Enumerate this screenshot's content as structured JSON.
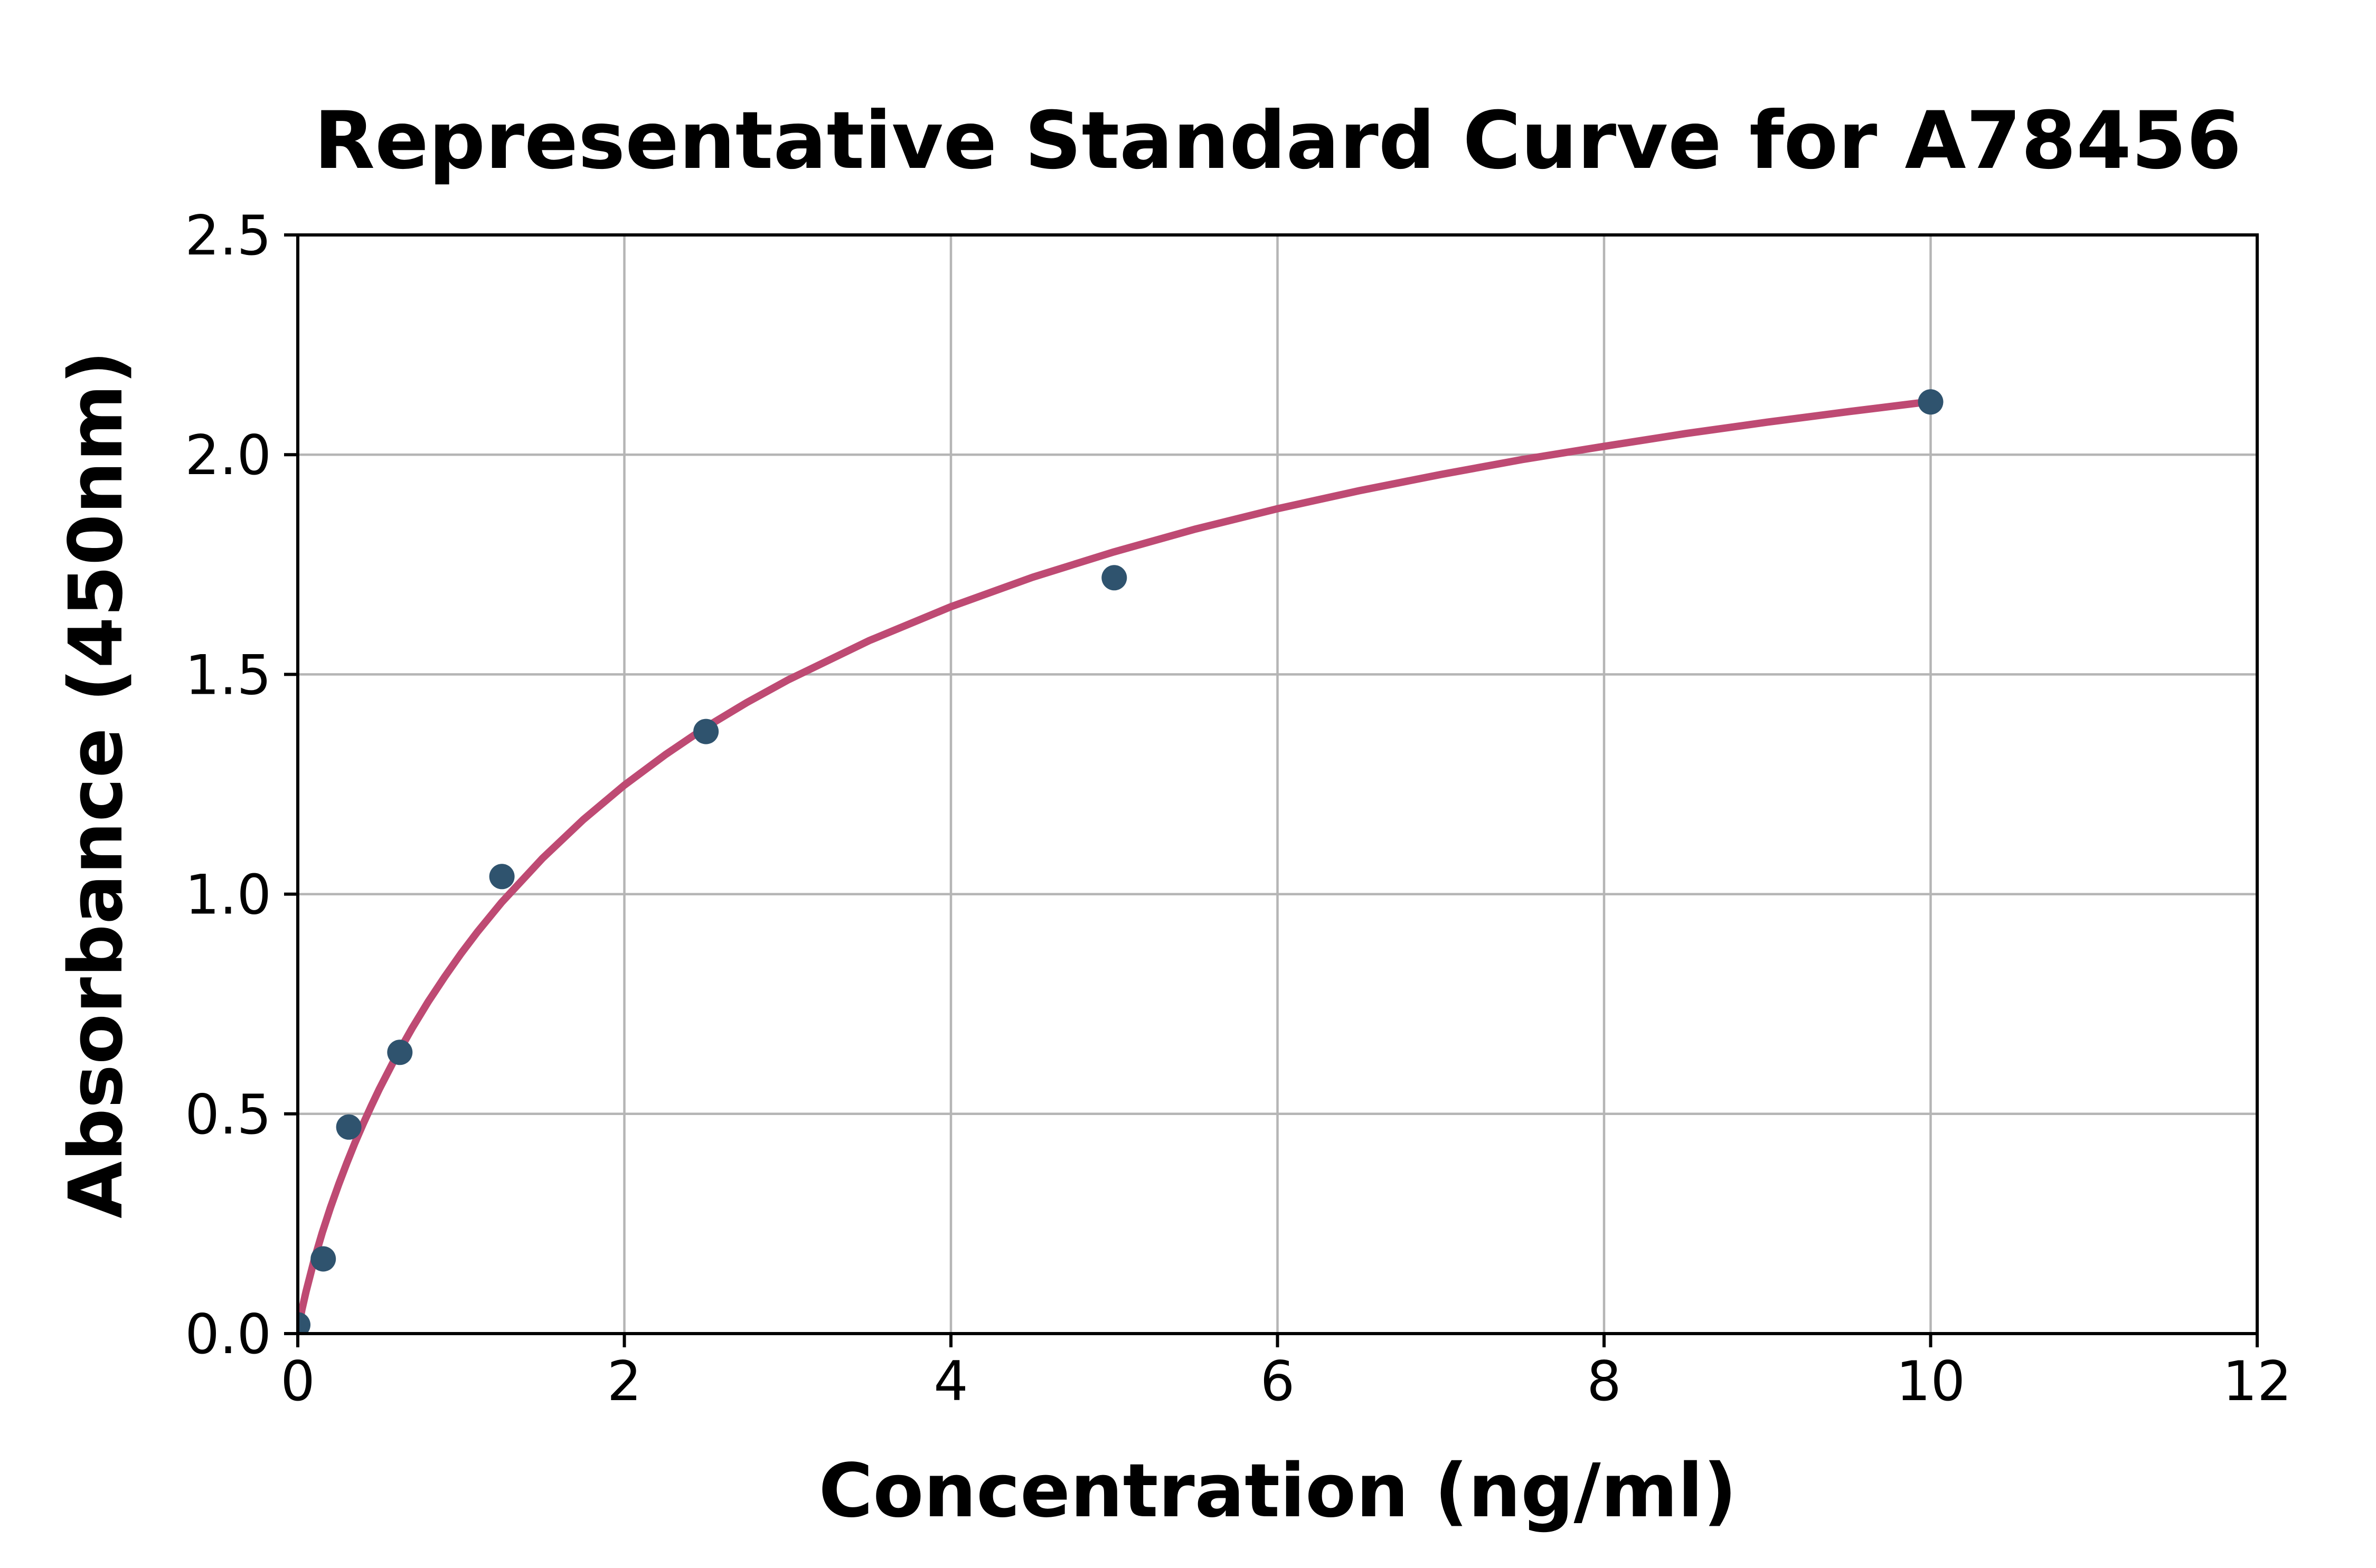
{
  "page": {
    "background": "#ffffff"
  },
  "chart_data": {
    "type": "scatter",
    "title": "Representative Standard Curve for A78456",
    "xlabel": "Concentration (ng/ml)",
    "ylabel": "Absorbance (450nm)",
    "xlim": [
      0,
      12
    ],
    "ylim": [
      0,
      2.5
    ],
    "grid": true,
    "legend_position": "none",
    "x_ticks": [
      {
        "value": 0,
        "label": "0"
      },
      {
        "value": 2,
        "label": "2"
      },
      {
        "value": 4,
        "label": "4"
      },
      {
        "value": 6,
        "label": "6"
      },
      {
        "value": 8,
        "label": "8"
      },
      {
        "value": 10,
        "label": "10"
      },
      {
        "value": 12,
        "label": "12"
      }
    ],
    "y_ticks": [
      {
        "value": 0.0,
        "label": "0.0"
      },
      {
        "value": 0.5,
        "label": "0.5"
      },
      {
        "value": 1.0,
        "label": "1.0"
      },
      {
        "value": 1.5,
        "label": "1.5"
      },
      {
        "value": 2.0,
        "label": "2.0"
      },
      {
        "value": 2.5,
        "label": "2.5"
      }
    ],
    "series": [
      {
        "name": "standard-points",
        "type": "scatter",
        "color": "#2F536E",
        "points": [
          {
            "x": 0,
            "y": 0.02
          },
          {
            "x": 0.156,
            "y": 0.17
          },
          {
            "x": 0.3125,
            "y": 0.47
          },
          {
            "x": 0.625,
            "y": 0.64
          },
          {
            "x": 1.25,
            "y": 1.04
          },
          {
            "x": 2.5,
            "y": 1.37
          },
          {
            "x": 5,
            "y": 1.72
          },
          {
            "x": 10,
            "y": 2.12
          }
        ]
      },
      {
        "name": "fit-curve",
        "type": "line",
        "color": "#BE4A73",
        "points": [
          [
            0,
            0
          ],
          [
            0.025,
            0.054
          ],
          [
            0.05,
            0.095
          ],
          [
            0.1,
            0.167
          ],
          [
            0.15,
            0.23
          ],
          [
            0.2,
            0.287
          ],
          [
            0.25,
            0.339
          ],
          [
            0.3,
            0.388
          ],
          [
            0.35,
            0.434
          ],
          [
            0.4,
            0.477
          ],
          [
            0.45,
            0.518
          ],
          [
            0.5,
            0.557
          ],
          [
            0.6,
            0.629
          ],
          [
            0.7,
            0.695
          ],
          [
            0.8,
            0.756
          ],
          [
            0.9,
            0.812
          ],
          [
            1.0,
            0.865
          ],
          [
            1.1,
            0.914
          ],
          [
            1.25,
            0.982
          ],
          [
            1.5,
            1.082
          ],
          [
            1.75,
            1.17
          ],
          [
            2.0,
            1.248
          ],
          [
            2.25,
            1.317
          ],
          [
            2.5,
            1.38
          ],
          [
            2.75,
            1.436
          ],
          [
            3.0,
            1.487
          ],
          [
            3.5,
            1.577
          ],
          [
            4.0,
            1.654
          ],
          [
            4.5,
            1.721
          ],
          [
            5.0,
            1.779
          ],
          [
            5.5,
            1.831
          ],
          [
            6.0,
            1.877
          ],
          [
            6.5,
            1.918
          ],
          [
            7.0,
            1.955
          ],
          [
            7.5,
            1.989
          ],
          [
            8.0,
            2.019
          ],
          [
            8.5,
            2.048
          ],
          [
            9.0,
            2.074
          ],
          [
            9.5,
            2.098
          ],
          [
            10.0,
            2.121
          ]
        ]
      }
    ],
    "colors": {
      "curve": "#BE4A73",
      "marker": "#2F536E",
      "grid": "#B5B5B5",
      "axis": "#000000",
      "background": "#FFFFFF"
    }
  }
}
